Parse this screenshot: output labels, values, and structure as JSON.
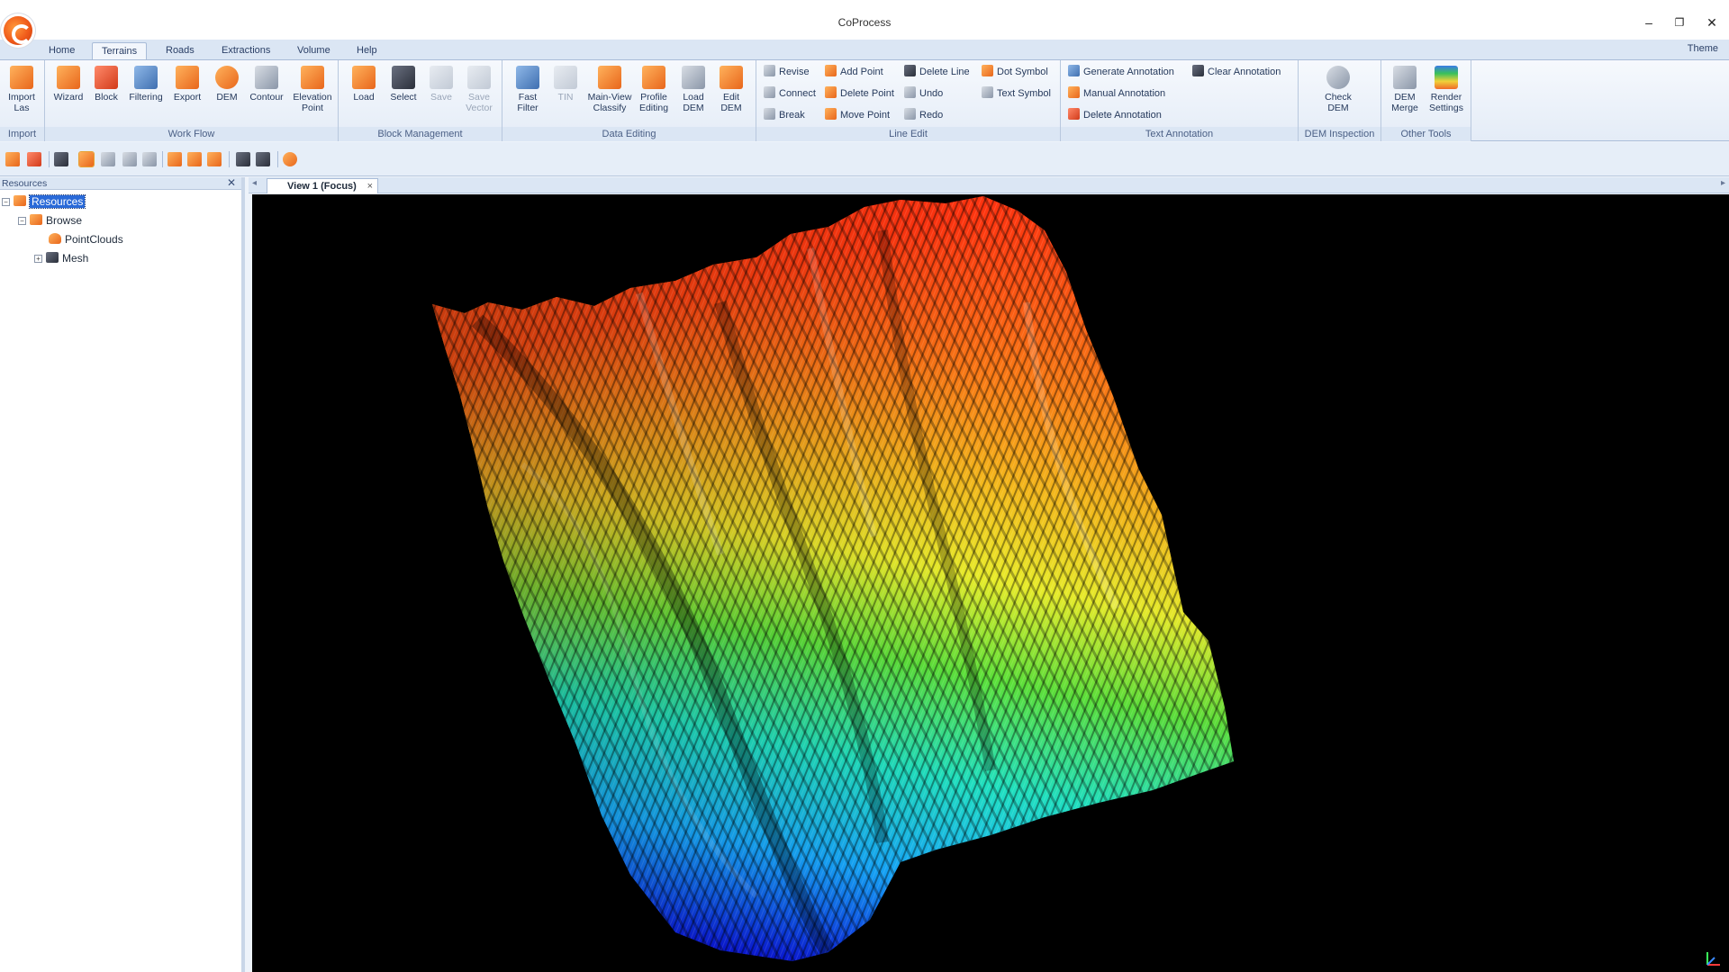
{
  "window": {
    "title": "CoProcess"
  },
  "title_buttons": {
    "minimize": "–",
    "restore": "❐",
    "close": "✕"
  },
  "ribbon_tabs": [
    "Home",
    "Terrains",
    "Roads",
    "Extractions",
    "Volume",
    "Help"
  ],
  "active_tab": "Terrains",
  "theme_label": "Theme",
  "groups": {
    "import": {
      "label": "Import",
      "buttons": [
        {
          "label": "Import\nLas",
          "icon": "folder-import-icon"
        }
      ]
    },
    "workflow": {
      "label": "Work Flow",
      "buttons": [
        {
          "label": "Wizard",
          "icon": "wizard-icon"
        },
        {
          "label": "Block",
          "icon": "block-icon"
        },
        {
          "label": "Filtering",
          "icon": "filtering-icon"
        },
        {
          "label": "Export",
          "icon": "export-icon"
        },
        {
          "label": "DEM",
          "icon": "dem-icon"
        },
        {
          "label": "Contour",
          "icon": "contour-icon"
        },
        {
          "label": "Elevation\nPoint",
          "icon": "elevation-point-icon"
        }
      ]
    },
    "block_management": {
      "label": "Block Management",
      "buttons": [
        {
          "label": "Load",
          "icon": "load-icon"
        },
        {
          "label": "Select",
          "icon": "select-icon"
        },
        {
          "label": "Save",
          "icon": "save-icon"
        },
        {
          "label": "Save\nVector",
          "icon": "save-vector-icon"
        }
      ]
    },
    "data_editing": {
      "label": "Data Editing",
      "buttons": [
        {
          "label": "Fast\nFilter",
          "icon": "fast-filter-icon"
        },
        {
          "label": "TIN",
          "icon": "tin-icon"
        },
        {
          "label": "Main-View\nClassify",
          "icon": "classify-icon"
        },
        {
          "label": "Profile\nEditing",
          "icon": "profile-editing-icon"
        },
        {
          "label": "Load\nDEM",
          "icon": "load-dem-icon"
        },
        {
          "label": "Edit\nDEM",
          "icon": "edit-dem-icon"
        }
      ]
    },
    "line_edit": {
      "label": "Line Edit",
      "buttons": [
        "Revise",
        "Connect",
        "Break",
        "Add Point",
        "Delete Point",
        "Move Point",
        "Delete Line",
        "Undo",
        "Redo",
        "Dot Symbol",
        "Text Symbol"
      ]
    },
    "text_annotation": {
      "label": "Text Annotation",
      "buttons": [
        "Generate Annotation",
        "Manual Annotation",
        "Delete Annotation",
        "Clear Annotation"
      ]
    },
    "dem_inspection": {
      "label": "DEM Inspection",
      "buttons": [
        {
          "label": "Check\nDEM",
          "icon": "check-dem-icon"
        }
      ]
    },
    "other_tools": {
      "label": "Other Tools",
      "buttons": [
        {
          "label": "DEM\nMerge",
          "icon": "dem-merge-icon"
        },
        {
          "label": "Render\nSettings",
          "icon": "render-settings-icon"
        }
      ]
    }
  },
  "quick_toolbar_icons": [
    "open-icon",
    "layers-icon",
    "fit-extent-icon",
    "elevation-icon",
    "profile-icon",
    "section-icon",
    "grid-icon",
    "point-icon",
    "ground-icon",
    "box-icon",
    "measure-icon",
    "pick-icon",
    "render-icon"
  ],
  "resources_panel": {
    "title": "Resources",
    "close": "✕",
    "tree": {
      "root": "Resources",
      "browse": "Browse",
      "pointclouds": "PointClouds",
      "mesh": "Mesh"
    },
    "toggles": {
      "expanded": "−",
      "collapsed": "+"
    }
  },
  "document_tab": {
    "label": "View 1 (Focus)",
    "close": "×",
    "nav_left": "◂",
    "nav_right": "▸"
  },
  "viewport": {
    "content": "3D DEM terrain rendered with elevation color ramp",
    "background": "#000000",
    "color_ramp": [
      "#0a1ae0",
      "#16a8ff",
      "#20e0c0",
      "#5ce03a",
      "#e8ec2a",
      "#ff9a18",
      "#ff2a10"
    ]
  }
}
